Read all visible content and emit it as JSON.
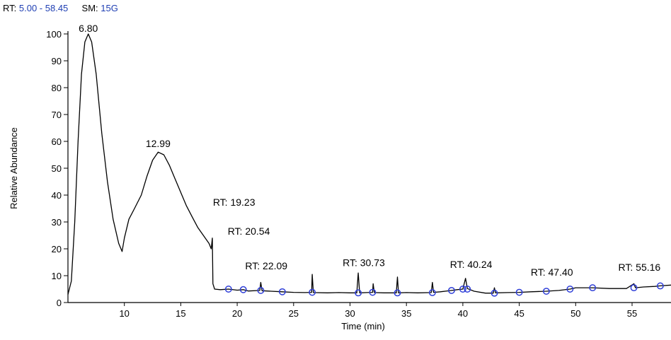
{
  "header": {
    "rt_key": "RT:",
    "rt_value": "5.00 - 58.45",
    "sm_key": "SM:",
    "sm_value": "15G"
  },
  "chart_data": {
    "type": "line",
    "xlabel": "Time (min)",
    "ylabel": "Relative Abundance",
    "xlim": [
      5.0,
      58.45
    ],
    "ylim": [
      0,
      100
    ],
    "x_ticks": [
      10,
      15,
      20,
      25,
      30,
      35,
      40,
      45,
      50,
      55
    ],
    "y_ticks": [
      0,
      10,
      20,
      30,
      40,
      50,
      60,
      70,
      80,
      90,
      100
    ],
    "series": [
      {
        "points": [
          [
            5.0,
            3
          ],
          [
            5.3,
            8
          ],
          [
            5.6,
            30
          ],
          [
            5.9,
            60
          ],
          [
            6.2,
            85
          ],
          [
            6.5,
            97
          ],
          [
            6.8,
            100
          ],
          [
            7.1,
            97
          ],
          [
            7.5,
            85
          ],
          [
            8.0,
            63
          ],
          [
            8.5,
            45
          ],
          [
            9.0,
            31
          ],
          [
            9.5,
            22
          ],
          [
            9.8,
            19
          ],
          [
            10.0,
            24
          ],
          [
            10.4,
            31
          ],
          [
            10.9,
            35
          ],
          [
            11.5,
            40
          ],
          [
            12.0,
            47
          ],
          [
            12.5,
            53
          ],
          [
            12.99,
            56
          ],
          [
            13.5,
            55
          ],
          [
            14.0,
            51
          ],
          [
            14.5,
            46
          ],
          [
            15.0,
            41
          ],
          [
            15.5,
            36
          ],
          [
            16.0,
            32
          ],
          [
            16.5,
            28
          ],
          [
            17.0,
            25
          ],
          [
            17.5,
            22
          ],
          [
            17.7,
            20
          ],
          [
            17.8,
            24
          ],
          [
            17.85,
            7
          ],
          [
            18.0,
            5
          ],
          [
            18.5,
            4.8
          ],
          [
            19.23,
            5
          ],
          [
            20,
            4.6
          ],
          [
            20.54,
            4.8
          ],
          [
            21,
            4.3
          ],
          [
            22.0,
            4.5
          ],
          [
            22.09,
            7.5
          ],
          [
            22.2,
            4.4
          ],
          [
            23,
            4.2
          ],
          [
            24,
            4.0
          ],
          [
            25,
            3.8
          ],
          [
            26,
            3.7
          ],
          [
            26.6,
            3.8
          ],
          [
            26.65,
            10.5
          ],
          [
            26.75,
            3.7
          ],
          [
            28,
            3.6
          ],
          [
            29,
            3.7
          ],
          [
            30,
            3.6
          ],
          [
            30.6,
            3.6
          ],
          [
            30.73,
            11
          ],
          [
            30.85,
            3.6
          ],
          [
            31.5,
            3.7
          ],
          [
            32.0,
            3.8
          ],
          [
            32.05,
            7
          ],
          [
            32.15,
            3.7
          ],
          [
            33,
            3.6
          ],
          [
            34.1,
            3.6
          ],
          [
            34.2,
            9.5
          ],
          [
            34.3,
            3.6
          ],
          [
            35,
            3.7
          ],
          [
            36,
            3.6
          ],
          [
            37.2,
            3.7
          ],
          [
            37.3,
            7.5
          ],
          [
            37.4,
            3.8
          ],
          [
            38,
            4.0
          ],
          [
            39,
            4.5
          ],
          [
            39.5,
            4.8
          ],
          [
            40.0,
            5.0
          ],
          [
            40.24,
            9
          ],
          [
            40.4,
            5.2
          ],
          [
            41,
            4.2
          ],
          [
            42,
            3.5
          ],
          [
            42.7,
            3.5
          ],
          [
            42.8,
            5.5
          ],
          [
            42.9,
            3.6
          ],
          [
            44,
            3.7
          ],
          [
            45,
            3.8
          ],
          [
            46,
            4.0
          ],
          [
            47.4,
            4.2
          ],
          [
            48.5,
            4.5
          ],
          [
            49.5,
            5.0
          ],
          [
            50,
            5.5
          ],
          [
            51.5,
            5.5
          ],
          [
            53,
            5.2
          ],
          [
            54.5,
            5.2
          ],
          [
            55.16,
            7
          ],
          [
            55.3,
            5.5
          ],
          [
            56,
            5.8
          ],
          [
            57,
            6.0
          ],
          [
            57.5,
            6.2
          ],
          [
            58.45,
            6.5
          ]
        ]
      }
    ],
    "markers": [
      [
        19.23,
        5
      ],
      [
        20.54,
        4.8
      ],
      [
        22.09,
        4.5
      ],
      [
        24,
        4.0
      ],
      [
        26.65,
        3.8
      ],
      [
        30.73,
        3.6
      ],
      [
        32.0,
        3.8
      ],
      [
        34.2,
        3.6
      ],
      [
        37.3,
        3.7
      ],
      [
        39.0,
        4.5
      ],
      [
        40.0,
        5.0
      ],
      [
        40.4,
        5.0
      ],
      [
        42.8,
        3.5
      ],
      [
        45,
        3.8
      ],
      [
        47.4,
        4.2
      ],
      [
        49.5,
        5.0
      ],
      [
        51.5,
        5.5
      ],
      [
        55.16,
        5.5
      ],
      [
        57.5,
        6.2
      ]
    ],
    "annotations": [
      {
        "text": "6.80",
        "x": 6.8,
        "y": 100
      },
      {
        "text": "12.99",
        "x": 12.99,
        "y": 56
      },
      {
        "text": "RT: 19.23",
        "x": 19.23,
        "y": 5
      },
      {
        "text": "RT: 20.54",
        "x": 20.54,
        "y": 4.8
      },
      {
        "text": "RT: 22.09",
        "x": 22.09,
        "y": 4.5
      },
      {
        "text": "RT: 30.73",
        "x": 30.73,
        "y": 3.6
      },
      {
        "text": "RT: 40.24",
        "x": 40.24,
        "y": 5.0
      },
      {
        "text": "RT: 47.40",
        "x": 47.4,
        "y": 4.2
      },
      {
        "text": "RT: 55.16",
        "x": 55.16,
        "y": 5.5
      }
    ],
    "colors": {
      "trace": "#000000",
      "marker": "#2f3fd8",
      "header_value": "#1f3fb3"
    }
  }
}
